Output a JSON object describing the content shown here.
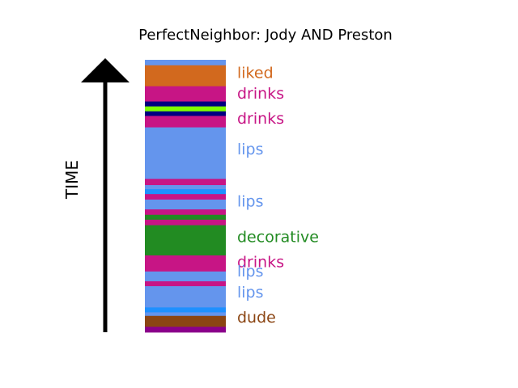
{
  "chart_data": {
    "type": "timeline-strip",
    "title": "PerfectNeighbor: Jody AND Preston",
    "axis_label": "TIME",
    "colors": {
      "lips": "#6495ED",
      "liked": "#D2691E",
      "drinks": "#C71585",
      "navy": "#000080",
      "lime": "#7FFF00",
      "decorative": "#228B22",
      "dodger": "#1E90FF",
      "dude": "#8B4513",
      "purple": "#8B008B"
    },
    "segments": [
      {
        "color": "lips",
        "start": 0.0,
        "end": 0.02
      },
      {
        "color": "liked",
        "start": 0.02,
        "end": 0.097
      },
      {
        "color": "drinks",
        "start": 0.097,
        "end": 0.153
      },
      {
        "color": "navy",
        "start": 0.153,
        "end": 0.171
      },
      {
        "color": "lime",
        "start": 0.171,
        "end": 0.189
      },
      {
        "color": "navy",
        "start": 0.189,
        "end": 0.206
      },
      {
        "color": "drinks",
        "start": 0.206,
        "end": 0.248
      },
      {
        "color": "lips",
        "start": 0.248,
        "end": 0.437
      },
      {
        "color": "drinks",
        "start": 0.437,
        "end": 0.46
      },
      {
        "color": "lips",
        "start": 0.46,
        "end": 0.475
      },
      {
        "color": "dodger",
        "start": 0.475,
        "end": 0.493
      },
      {
        "color": "drinks",
        "start": 0.493,
        "end": 0.513
      },
      {
        "color": "lips",
        "start": 0.513,
        "end": 0.549
      },
      {
        "color": "drinks",
        "start": 0.549,
        "end": 0.569
      },
      {
        "color": "decorative",
        "start": 0.569,
        "end": 0.587
      },
      {
        "color": "drinks",
        "start": 0.587,
        "end": 0.607
      },
      {
        "color": "decorative",
        "start": 0.607,
        "end": 0.718
      },
      {
        "color": "drinks",
        "start": 0.718,
        "end": 0.777
      },
      {
        "color": "lips",
        "start": 0.777,
        "end": 0.813
      },
      {
        "color": "drinks",
        "start": 0.813,
        "end": 0.831
      },
      {
        "color": "lips",
        "start": 0.831,
        "end": 0.909
      },
      {
        "color": "dodger",
        "start": 0.909,
        "end": 0.927
      },
      {
        "color": "lips",
        "start": 0.927,
        "end": 0.94
      },
      {
        "color": "dude",
        "start": 0.94,
        "end": 0.98
      },
      {
        "color": "purple",
        "start": 0.98,
        "end": 1.0
      }
    ],
    "labels": [
      {
        "text": "liked",
        "color": "liked",
        "position": 0.046
      },
      {
        "text": "drinks",
        "color": "drinks",
        "position": 0.121
      },
      {
        "text": "drinks",
        "color": "drinks",
        "position": 0.213
      },
      {
        "text": "lips",
        "color": "lips",
        "position": 0.327
      },
      {
        "text": "lips",
        "color": "lips",
        "position": 0.518
      },
      {
        "text": "decorative",
        "color": "decorative",
        "position": 0.648
      },
      {
        "text": "drinks",
        "color": "drinks",
        "position": 0.74
      },
      {
        "text": "lips",
        "color": "lips",
        "position": 0.775
      },
      {
        "text": "lips",
        "color": "lips",
        "position": 0.851
      },
      {
        "text": "dude",
        "color": "dude",
        "position": 0.944
      }
    ]
  }
}
